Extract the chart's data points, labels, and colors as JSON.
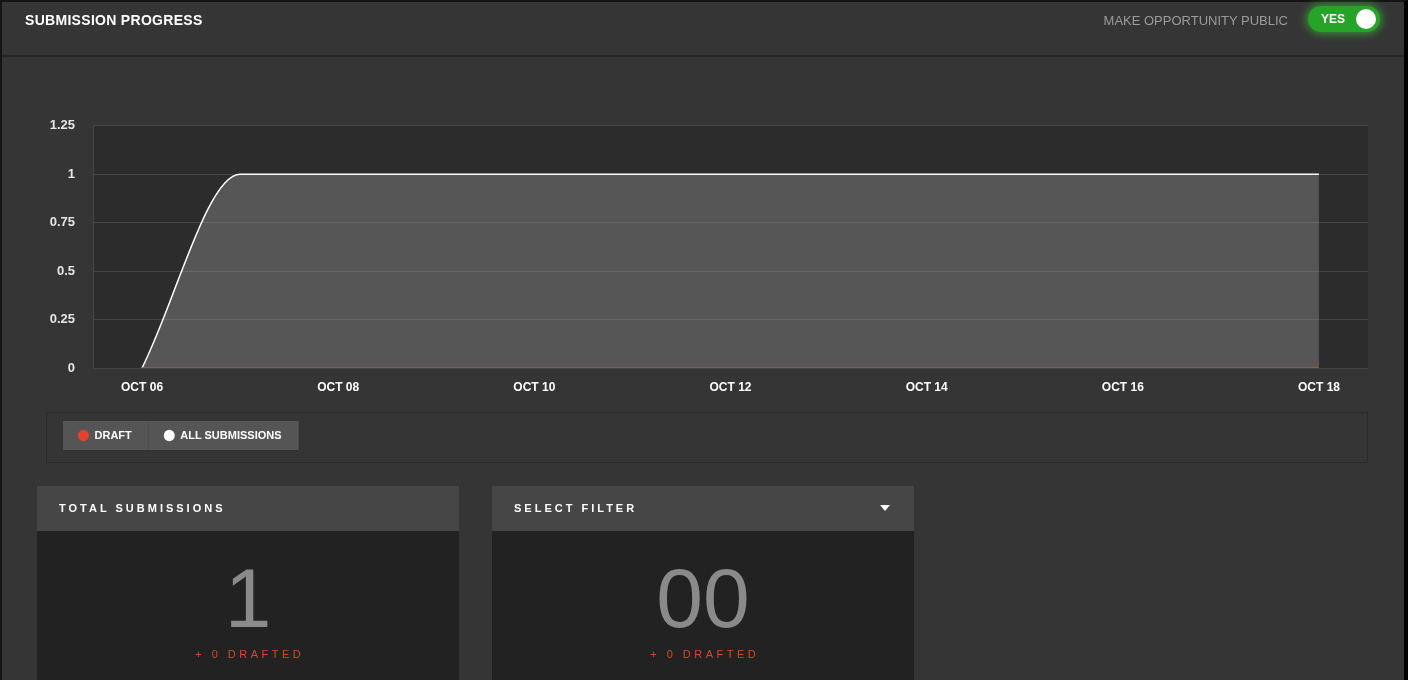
{
  "chart_data": [
    {
      "type": "area",
      "title": "SUBMISSION PROGRESS",
      "annotations": [
        "MAKE OPPORTUNITY PUBLIC",
        "YES"
      ],
      "categories": [
        "OCT 06",
        null,
        "OCT 08",
        null,
        "OCT 10",
        null,
        "OCT 12",
        null,
        "OCT 14",
        null,
        "OCT 16",
        null,
        "OCT 18"
      ],
      "series": [
        {
          "name": "DRAFT",
          "type": "line",
          "color": "#e5432f",
          "values": [
            0,
            0,
            0,
            0,
            0,
            0,
            0,
            0,
            0,
            0,
            0,
            0,
            0
          ]
        },
        {
          "name": "ALL SUBMISSIONS",
          "color": "#ffffff",
          "values": [
            0,
            1,
            1,
            1,
            1,
            1,
            1,
            1,
            1,
            1,
            1,
            1,
            1
          ]
        }
      ],
      "ylim": [
        0,
        1.25
      ],
      "yticks": [
        0,
        0.25,
        0.5,
        0.75,
        1,
        1.25
      ],
      "grid": "y",
      "legend": "bottom left",
      "marker": "none"
    },
    {
      "type": "other",
      "title": "TOTAL SUBMISSIONS",
      "annotations": [
        "1",
        "+ 0 DRAFTED"
      ]
    },
    {
      "type": "other",
      "title": "SELECT FILTER",
      "annotations": [
        "00",
        "+ 0 DRAFTED"
      ]
    }
  ]
}
